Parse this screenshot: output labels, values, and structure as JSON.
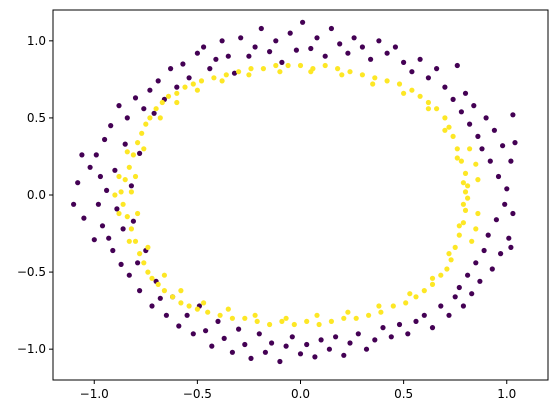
{
  "chart_data": {
    "type": "scatter",
    "title": "",
    "xlabel": "",
    "ylabel": "",
    "xlim": [
      -1.2,
      1.2
    ],
    "ylim": [
      -1.2,
      1.2
    ],
    "grid": false,
    "legend": "none",
    "x_ticks": [
      -1.0,
      -0.5,
      0.0,
      0.5,
      1.0
    ],
    "y_ticks": [
      -1.0,
      -0.5,
      0.0,
      0.5,
      1.0
    ],
    "x_tick_labels": [
      "−1.0",
      "−0.5",
      "0.0",
      "0.5",
      "1.0"
    ],
    "y_tick_labels": [
      "−1.0",
      "−0.5",
      "0.0",
      "0.5",
      "1.0"
    ],
    "series": [
      {
        "color": "#440154",
        "points": [
          [
            -1.1,
            -0.06
          ],
          [
            -1.08,
            0.08
          ],
          [
            -1.06,
            0.26
          ],
          [
            -1.05,
            -0.15
          ],
          [
            -1.02,
            0.18
          ],
          [
            -1.0,
            -0.29
          ],
          [
            -0.99,
            0.26
          ],
          [
            -0.98,
            -0.06
          ],
          [
            -0.97,
            0.12
          ],
          [
            -0.96,
            -0.2
          ],
          [
            -0.95,
            0.36
          ],
          [
            -0.94,
            0.03
          ],
          [
            -0.93,
            -0.28
          ],
          [
            -0.92,
            0.45
          ],
          [
            -0.91,
            -0.36
          ],
          [
            -0.9,
            0.16
          ],
          [
            -0.89,
            -0.09
          ],
          [
            -0.88,
            0.58
          ],
          [
            -0.87,
            -0.45
          ],
          [
            -0.86,
            -0.22
          ],
          [
            -0.85,
            0.33
          ],
          [
            -0.84,
            0.5
          ],
          [
            -0.83,
            -0.52
          ],
          [
            -0.82,
            0.06
          ],
          [
            -0.81,
            -0.17
          ],
          [
            -0.8,
            0.63
          ],
          [
            -0.79,
            -0.44
          ],
          [
            -0.78,
            0.27
          ],
          [
            -0.78,
            -0.62
          ],
          [
            -0.76,
            0.56
          ],
          [
            -0.75,
            -0.36
          ],
          [
            -0.73,
            0.68
          ],
          [
            -0.72,
            -0.72
          ],
          [
            -0.71,
            0.53
          ],
          [
            -0.7,
            -0.56
          ],
          [
            -0.69,
            0.74
          ],
          [
            -0.68,
            -0.67
          ],
          [
            -0.66,
            0.62
          ],
          [
            -0.65,
            -0.78
          ],
          [
            -0.63,
            0.82
          ],
          [
            -0.62,
            -0.66
          ],
          [
            -0.6,
            0.7
          ],
          [
            -0.59,
            -0.85
          ],
          [
            -0.57,
            0.85
          ],
          [
            -0.55,
            -0.78
          ],
          [
            -0.54,
            0.76
          ],
          [
            -0.52,
            -0.9
          ],
          [
            -0.5,
            0.92
          ],
          [
            -0.49,
            -0.72
          ],
          [
            -0.47,
            0.96
          ],
          [
            -0.46,
            -0.88
          ],
          [
            -0.44,
            0.82
          ],
          [
            -0.43,
            -0.98
          ],
          [
            -0.41,
            0.88
          ],
          [
            -0.4,
            -0.82
          ],
          [
            -0.38,
            1.0
          ],
          [
            -0.37,
            -0.93
          ],
          [
            -0.35,
            0.9
          ],
          [
            -0.33,
            -1.02
          ],
          [
            -0.32,
            0.79
          ],
          [
            -0.3,
            -0.87
          ],
          [
            -0.29,
            1.02
          ],
          [
            -0.27,
            -0.97
          ],
          [
            -0.25,
            0.9
          ],
          [
            -0.24,
            -1.06
          ],
          [
            -0.22,
            0.96
          ],
          [
            -0.2,
            -0.9
          ],
          [
            -0.19,
            1.08
          ],
          [
            -0.17,
            -1.02
          ],
          [
            -0.15,
            0.93
          ],
          [
            -0.14,
            -0.96
          ],
          [
            -0.12,
            1.0
          ],
          [
            -0.1,
            -1.08
          ],
          [
            -0.09,
            0.86
          ],
          [
            -0.07,
            -0.98
          ],
          [
            -0.05,
            1.05
          ],
          [
            -0.04,
            -0.92
          ],
          [
            -0.02,
            0.94
          ],
          [
            0.0,
            -1.03
          ],
          [
            0.01,
            1.12
          ],
          [
            0.03,
            -0.97
          ],
          [
            0.05,
            0.95
          ],
          [
            0.07,
            -1.05
          ],
          [
            0.08,
            1.02
          ],
          [
            0.1,
            -0.94
          ],
          [
            0.12,
            0.9
          ],
          [
            0.14,
            -1.0
          ],
          [
            0.15,
            1.08
          ],
          [
            0.17,
            -0.92
          ],
          [
            0.19,
            0.98
          ],
          [
            0.21,
            -1.04
          ],
          [
            0.23,
            0.92
          ],
          [
            0.24,
            -0.96
          ],
          [
            0.26,
            1.02
          ],
          [
            0.28,
            -0.9
          ],
          [
            0.3,
            0.96
          ],
          [
            0.32,
            -1.0
          ],
          [
            0.34,
            0.88
          ],
          [
            0.36,
            -0.94
          ],
          [
            0.38,
            1.0
          ],
          [
            0.4,
            -0.86
          ],
          [
            0.42,
            0.92
          ],
          [
            0.44,
            -0.92
          ],
          [
            0.46,
            0.96
          ],
          [
            0.48,
            -0.84
          ],
          [
            0.5,
            0.86
          ],
          [
            0.52,
            -0.9
          ],
          [
            0.54,
            0.8
          ],
          [
            0.56,
            -0.82
          ],
          [
            0.58,
            0.88
          ],
          [
            0.6,
            -0.78
          ],
          [
            0.62,
            0.76
          ],
          [
            0.64,
            -0.86
          ],
          [
            0.66,
            0.82
          ],
          [
            0.68,
            -0.72
          ],
          [
            0.7,
            0.7
          ],
          [
            0.72,
            -0.78
          ],
          [
            0.74,
            0.62
          ],
          [
            0.75,
            -0.66
          ],
          [
            0.76,
            0.84
          ],
          [
            0.77,
            -0.6
          ],
          [
            0.78,
            0.54
          ],
          [
            0.79,
            -0.72
          ],
          [
            0.8,
            0.66
          ],
          [
            0.81,
            -0.52
          ],
          [
            0.82,
            0.46
          ],
          [
            0.83,
            -0.64
          ],
          [
            0.84,
            0.58
          ],
          [
            0.85,
            -0.44
          ],
          [
            0.86,
            0.38
          ],
          [
            0.87,
            -0.56
          ],
          [
            0.88,
            0.3
          ],
          [
            0.89,
            -0.36
          ],
          [
            0.9,
            0.5
          ],
          [
            0.91,
            -0.26
          ],
          [
            0.92,
            0.22
          ],
          [
            0.93,
            -0.48
          ],
          [
            0.94,
            0.42
          ],
          [
            0.95,
            -0.16
          ],
          [
            0.96,
            0.12
          ],
          [
            0.97,
            -0.38
          ],
          [
            0.98,
            0.32
          ],
          [
            0.99,
            -0.06
          ],
          [
            1.0,
            0.04
          ],
          [
            1.01,
            -0.28
          ],
          [
            1.02,
            0.22
          ],
          [
            1.03,
            0.52
          ],
          [
            1.03,
            -0.12
          ],
          [
            1.04,
            0.34
          ],
          [
            1.02,
            -0.34
          ]
        ]
      },
      {
        "color": "#fde725",
        "points": [
          [
            -0.87,
            0.02
          ],
          [
            -0.86,
            -0.06
          ],
          [
            -0.85,
            0.1
          ],
          [
            -0.84,
            -0.14
          ],
          [
            -0.83,
            0.18
          ],
          [
            -0.82,
            -0.22
          ],
          [
            -0.81,
            0.26
          ],
          [
            -0.8,
            -0.3
          ],
          [
            -0.79,
            0.34
          ],
          [
            -0.78,
            -0.38
          ],
          [
            -0.77,
            0.4
          ],
          [
            -0.76,
            -0.44
          ],
          [
            -0.75,
            0.46
          ],
          [
            -0.74,
            -0.5
          ],
          [
            -0.73,
            0.5
          ],
          [
            -0.72,
            -0.54
          ],
          [
            -0.7,
            0.56
          ],
          [
            -0.69,
            -0.58
          ],
          [
            -0.67,
            0.6
          ],
          [
            -0.66,
            -0.62
          ],
          [
            -0.64,
            0.64
          ],
          [
            -0.62,
            -0.66
          ],
          [
            -0.6,
            0.66
          ],
          [
            -0.58,
            -0.7
          ],
          [
            -0.56,
            0.7
          ],
          [
            -0.54,
            -0.72
          ],
          [
            -0.52,
            0.72
          ],
          [
            -0.5,
            -0.74
          ],
          [
            -0.48,
            0.74
          ],
          [
            -0.45,
            -0.76
          ],
          [
            -0.42,
            0.76
          ],
          [
            -0.39,
            -0.78
          ],
          [
            -0.36,
            0.78
          ],
          [
            -0.33,
            -0.8
          ],
          [
            -0.3,
            0.8
          ],
          [
            -0.27,
            -0.8
          ],
          [
            -0.24,
            0.82
          ],
          [
            -0.21,
            -0.82
          ],
          [
            -0.18,
            0.82
          ],
          [
            -0.15,
            -0.84
          ],
          [
            -0.12,
            0.84
          ],
          [
            -0.09,
            -0.82
          ],
          [
            -0.06,
            0.84
          ],
          [
            -0.03,
            -0.84
          ],
          [
            0.0,
            0.84
          ],
          [
            0.03,
            -0.82
          ],
          [
            0.06,
            0.82
          ],
          [
            0.09,
            -0.84
          ],
          [
            0.12,
            0.84
          ],
          [
            0.15,
            -0.82
          ],
          [
            0.18,
            0.82
          ],
          [
            0.21,
            -0.8
          ],
          [
            0.24,
            0.8
          ],
          [
            0.27,
            -0.8
          ],
          [
            0.3,
            0.78
          ],
          [
            0.33,
            -0.78
          ],
          [
            0.36,
            0.76
          ],
          [
            0.39,
            -0.76
          ],
          [
            0.42,
            0.74
          ],
          [
            0.45,
            -0.72
          ],
          [
            0.48,
            0.72
          ],
          [
            0.51,
            -0.7
          ],
          [
            0.54,
            0.68
          ],
          [
            0.56,
            -0.66
          ],
          [
            0.58,
            0.64
          ],
          [
            0.6,
            -0.62
          ],
          [
            0.62,
            0.6
          ],
          [
            0.64,
            -0.58
          ],
          [
            0.66,
            0.56
          ],
          [
            0.68,
            -0.52
          ],
          [
            0.7,
            0.5
          ],
          [
            0.71,
            -0.48
          ],
          [
            0.72,
            0.44
          ],
          [
            0.73,
            -0.42
          ],
          [
            0.74,
            0.38
          ],
          [
            0.75,
            -0.34
          ],
          [
            0.76,
            0.3
          ],
          [
            0.77,
            -0.26
          ],
          [
            0.78,
            0.22
          ],
          [
            0.79,
            -0.18
          ],
          [
            0.8,
            0.14
          ],
          [
            0.8,
            -0.1
          ],
          [
            0.81,
            0.06
          ],
          [
            0.81,
            -0.02
          ],
          [
            0.8,
            0.02
          ],
          [
            -0.82,
            0.02
          ],
          [
            -0.8,
            0.12
          ],
          [
            -0.79,
            -0.12
          ],
          [
            -0.76,
            0.3
          ],
          [
            -0.74,
            -0.34
          ],
          [
            -0.68,
            0.5
          ],
          [
            -0.66,
            -0.52
          ],
          [
            -0.6,
            0.6
          ],
          [
            -0.58,
            -0.62
          ],
          [
            -0.5,
            0.68
          ],
          [
            -0.47,
            -0.7
          ],
          [
            -0.38,
            0.74
          ],
          [
            -0.35,
            -0.74
          ],
          [
            -0.25,
            0.78
          ],
          [
            -0.22,
            -0.78
          ],
          [
            -0.1,
            0.8
          ],
          [
            -0.07,
            -0.8
          ],
          [
            0.05,
            0.8
          ],
          [
            0.08,
            -0.78
          ],
          [
            0.2,
            0.78
          ],
          [
            0.23,
            -0.76
          ],
          [
            0.35,
            0.72
          ],
          [
            0.38,
            -0.72
          ],
          [
            0.5,
            0.66
          ],
          [
            0.53,
            -0.64
          ],
          [
            0.62,
            0.56
          ],
          [
            0.64,
            -0.54
          ],
          [
            0.7,
            0.42
          ],
          [
            0.72,
            -0.38
          ],
          [
            0.76,
            0.24
          ],
          [
            0.77,
            -0.2
          ],
          [
            0.79,
            0.08
          ],
          [
            0.79,
            -0.06
          ],
          [
            -0.84,
            0.28
          ],
          [
            -0.83,
            -0.3
          ],
          [
            0.82,
            0.3
          ],
          [
            0.83,
            -0.3
          ],
          [
            0.86,
            0.1
          ],
          [
            0.86,
            -0.12
          ],
          [
            0.85,
            0.2
          ],
          [
            0.85,
            -0.22
          ],
          [
            -0.88,
            0.12
          ],
          [
            -0.88,
            -0.12
          ],
          [
            -0.9,
            0.0
          ]
        ]
      }
    ]
  }
}
